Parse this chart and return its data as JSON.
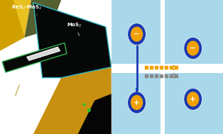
{
  "bg_color": "#ffffff",
  "left_bg": "#3a2510",
  "right_bg": "#cde8f2",
  "tile_bg": "#a8d8ea",
  "circle_outer_color": "#1a3ab0",
  "circle_inner_color": "#f0a000",
  "arrow_orange_color": "#f0a000",
  "arrow_gray_color": "#888888",
  "line_color": "#1a3ab0"
}
